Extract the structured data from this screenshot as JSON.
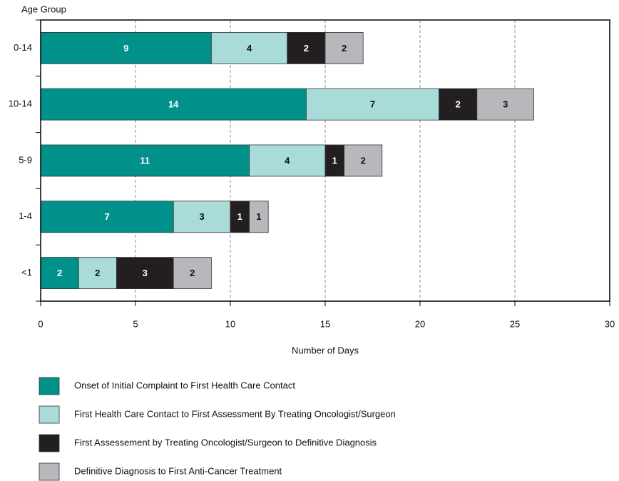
{
  "chart_data": {
    "type": "stacked_barh",
    "y_axis_label": "Age Group",
    "x_axis_label": "Number of Days",
    "categories": [
      "0-14",
      "10-14",
      "5-9",
      "1-4",
      "<1"
    ],
    "series": [
      {
        "name": "Onset of Initial Complaint to First Health Care Contact",
        "color": "#00918a",
        "label_color": "#ffffff",
        "values": [
          9,
          14,
          11,
          7,
          2
        ]
      },
      {
        "name": "First Health Care Contact to First Assessment By Treating Oncologist/Surgeon",
        "color": "#a9dcd8",
        "label_color": "#111111",
        "values": [
          4,
          7,
          4,
          3,
          2
        ]
      },
      {
        "name": "First Assessement by Treating Oncologist/Surgeon to Definitive Diagnosis",
        "color": "#231f20",
        "label_color": "#ffffff",
        "values": [
          2,
          2,
          1,
          1,
          3
        ]
      },
      {
        "name": "Definitive Diagnosis to First Anti-Cancer Treatment",
        "color": "#b8b8bc",
        "label_color": "#111111",
        "values": [
          2,
          3,
          2,
          1,
          2
        ]
      }
    ],
    "xlim": [
      0,
      30
    ],
    "xticks": [
      0,
      5,
      10,
      15,
      20,
      25,
      30
    ],
    "grid": true,
    "legend": "bottom"
  }
}
